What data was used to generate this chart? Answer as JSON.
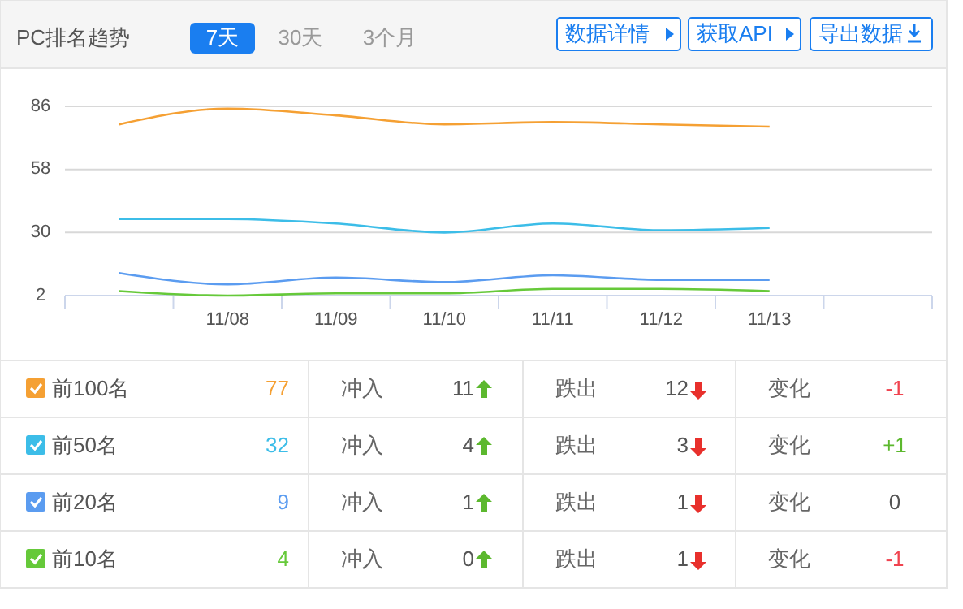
{
  "chart_data": [
    {
      "type": "line",
      "title": "PC排名趋势",
      "annotations": [
        "7天",
        "30天",
        "3个月",
        "数据详情",
        "获取API",
        "导出数据"
      ],
      "categories": [
        null,
        "11/08",
        "11/09",
        "11/10",
        "11/11",
        "11/12",
        "11/13",
        null
      ],
      "ylim": [
        2,
        86
      ],
      "yticks": [
        2,
        30,
        58,
        86
      ],
      "grid": "y",
      "legend": "bottom",
      "marker": "none",
      "series": [
        {
          "name": "前100名",
          "color": "#f5a033",
          "values": [
            78,
            85,
            82,
            78,
            79,
            78,
            77,
            null
          ]
        },
        {
          "name": "前50名",
          "color": "#3cbde8",
          "values": [
            36,
            36,
            34,
            30,
            34,
            31,
            32,
            null
          ]
        },
        {
          "name": "前20名",
          "color": "#5b9cf0",
          "values": [
            12,
            7,
            10,
            8,
            11,
            9,
            9,
            null
          ]
        },
        {
          "name": "前10名",
          "color": "#66c93a",
          "values": [
            4,
            2,
            3,
            3,
            5,
            5,
            4,
            null
          ]
        }
      ]
    },
    {
      "type": "other",
      "annotations": [
        "77",
        "冲入",
        "11",
        "跌出",
        "12",
        "变化",
        "-1",
        "32",
        "冲入",
        "4",
        "跌出",
        "3",
        "变化",
        "+1",
        "9",
        "冲入",
        "1",
        "跌出",
        "1",
        "变化",
        "0",
        "4",
        "冲入",
        "0",
        "跌出",
        "1",
        "变化",
        "-1"
      ]
    }
  ]
}
